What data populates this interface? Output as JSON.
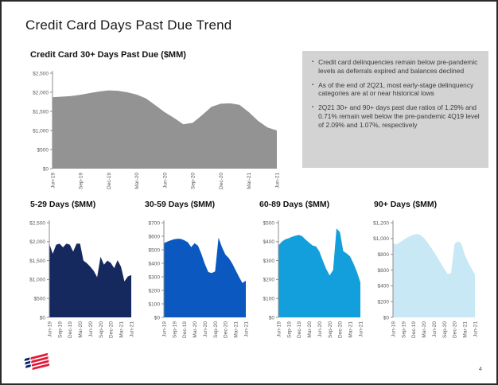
{
  "slide": {
    "title": "Credit Card Days Past Due Trend",
    "page_number": "4",
    "logo": "bank-of-america-flag"
  },
  "commentary": {
    "background_color": "#D3D3D3",
    "bullets": [
      "Credit card delinquencies remain below pre-pandemic levels as deferrals expired and balances declined",
      "As of the end of 2Q21, most early-stage delinquency categories are at or near historical lows",
      "2Q21 30+ and 90+ days past due ratios of 1.29% and 0.71% remain well below the pre-pandemic 4Q19 level of 2.09% and 1.07%, respectively"
    ]
  },
  "chart_data": [
    {
      "type": "area",
      "title": "Credit Card 30+ Days Past Due ($MM)",
      "color": "#939393",
      "ylim": [
        0,
        2500
      ],
      "ytick_labels": [
        "$0",
        "$500",
        "$1,000",
        "$1,500",
        "$2,000",
        "$2,500"
      ],
      "x_tick_labels": [
        "Jun-19",
        "Sep-19",
        "Dec-19",
        "Mar-20",
        "Jun-20",
        "Sep-20",
        "Dec-20",
        "Mar-21",
        "Jun-21"
      ],
      "x_frequency": "monthly Jun-19 through Jun-21",
      "grid": false,
      "legend": "none",
      "values": [
        1870,
        1885,
        1900,
        1935,
        1980,
        2020,
        2050,
        2040,
        2000,
        1940,
        1840,
        1660,
        1480,
        1330,
        1160,
        1200,
        1400,
        1620,
        1700,
        1710,
        1670,
        1480,
        1250,
        1080,
        1000
      ]
    },
    {
      "type": "area",
      "title": "5-29 Days ($MM)",
      "color": "#15295E",
      "ylim": [
        0,
        2500
      ],
      "ytick_labels": [
        "$0",
        "$500",
        "$1,000",
        "$1,500",
        "$2,000",
        "$2,500"
      ],
      "x_tick_labels": [
        "Jun-19",
        "Sep-19",
        "Dec-19",
        "Mar-20",
        "Jun-20",
        "Sep-20",
        "Dec-20",
        "Mar-21",
        "Jun-21"
      ],
      "x_frequency": "monthly Jun-19 through Jun-21",
      "grid": false,
      "legend": "none",
      "values": [
        1950,
        1680,
        1920,
        1945,
        1850,
        1950,
        1920,
        1740,
        1950,
        1950,
        1500,
        1430,
        1340,
        1230,
        1060,
        1600,
        1390,
        1500,
        1440,
        1300,
        1510,
        1340,
        950,
        1080,
        1120
      ]
    },
    {
      "type": "area",
      "title": "30-59 Days ($MM)",
      "color": "#0A58C0",
      "ylim": [
        0,
        700
      ],
      "ytick_labels": [
        "$0",
        "$100",
        "$200",
        "$300",
        "$400",
        "$500",
        "$600",
        "$700"
      ],
      "x_tick_labels": [
        "Jun-19",
        "Sep-19",
        "Dec-19",
        "Mar-20",
        "Jun-20",
        "Sep-20",
        "Dec-20",
        "Mar-21",
        "Jun-21"
      ],
      "x_frequency": "monthly Jun-19 through Jun-21",
      "grid": false,
      "legend": "none",
      "values": [
        548,
        560,
        570,
        578,
        582,
        580,
        570,
        556,
        520,
        548,
        530,
        468,
        395,
        335,
        328,
        340,
        590,
        520,
        465,
        440,
        400,
        350,
        300,
        255,
        272
      ]
    },
    {
      "type": "area",
      "title": "60-89 Days ($MM)",
      "color": "#129FDB",
      "ylim": [
        0,
        500
      ],
      "ytick_labels": [
        "$0",
        "$100",
        "$200",
        "$300",
        "$400",
        "$500"
      ],
      "x_tick_labels": [
        "Jun-19",
        "Sep-19",
        "Dec-19",
        "Mar-20",
        "Jun-20",
        "Sep-20",
        "Dec-20",
        "Mar-21",
        "Jun-21"
      ],
      "x_frequency": "monthly Jun-19 through Jun-21",
      "grid": false,
      "legend": "none",
      "values": [
        380,
        400,
        412,
        418,
        426,
        432,
        436,
        428,
        410,
        395,
        380,
        375,
        348,
        300,
        255,
        222,
        250,
        470,
        450,
        350,
        338,
        322,
        285,
        240,
        185
      ]
    },
    {
      "type": "area",
      "title": "90+ Days ($MM)",
      "color": "#C9E8F6",
      "ylim": [
        0,
        1200
      ],
      "ytick_labels": [
        "$0",
        "$200",
        "$400",
        "$600",
        "$800",
        "$1,000",
        "$1,200"
      ],
      "x_tick_labels": [
        "Jun-19",
        "Sep-19",
        "Dec-19",
        "Mar-20",
        "Jun-20",
        "Sep-20",
        "Dec-20",
        "Mar-21",
        "Jun-21"
      ],
      "x_frequency": "monthly Jun-19 through Jun-21",
      "grid": false,
      "legend": "none",
      "values": [
        940,
        925,
        950,
        980,
        1008,
        1030,
        1048,
        1058,
        1045,
        1010,
        955,
        895,
        830,
        760,
        690,
        615,
        550,
        560,
        930,
        965,
        940,
        800,
        700,
        620,
        545
      ]
    }
  ],
  "axis_style": {
    "tick_label_color": "#595959",
    "axis_line_color": "#8c8c8c"
  }
}
